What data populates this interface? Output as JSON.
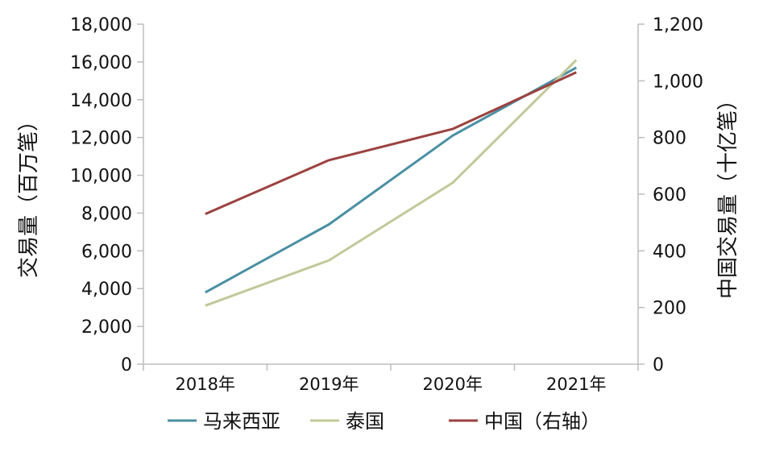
{
  "chart_data": {
    "type": "line",
    "categories": [
      "2018年",
      "2019年",
      "2020年",
      "2021年"
    ],
    "y_left": {
      "label": "交易量（百万笔）",
      "lim": [
        0,
        18000
      ],
      "ticks": [
        0,
        2000,
        4000,
        6000,
        8000,
        10000,
        12000,
        14000,
        16000,
        18000
      ],
      "tick_labels": [
        "0",
        "2,000",
        "4,000",
        "6,000",
        "8,000",
        "10,000",
        "12,000",
        "14,000",
        "16,000",
        "18,000"
      ]
    },
    "y_right": {
      "label": "中国交易量（十亿笔）",
      "lim": [
        0,
        1200
      ],
      "ticks": [
        0,
        200,
        400,
        600,
        800,
        1000,
        1200
      ],
      "tick_labels": [
        "0",
        "200",
        "400",
        "600",
        "800",
        "1,000",
        "1,200"
      ]
    },
    "series": [
      {
        "name": "马来西亚",
        "axis": "left",
        "color": "#4a8fa3",
        "values": [
          3800,
          7400,
          12100,
          15700
        ]
      },
      {
        "name": "泰国",
        "axis": "left",
        "color": "#c3c89a",
        "values": [
          3100,
          5500,
          9600,
          16100
        ]
      },
      {
        "name": "中国（右轴）",
        "axis": "right",
        "color": "#9b4240",
        "values": [
          530,
          720,
          830,
          1030
        ]
      }
    ],
    "grid": false,
    "legend_position": "bottom"
  }
}
